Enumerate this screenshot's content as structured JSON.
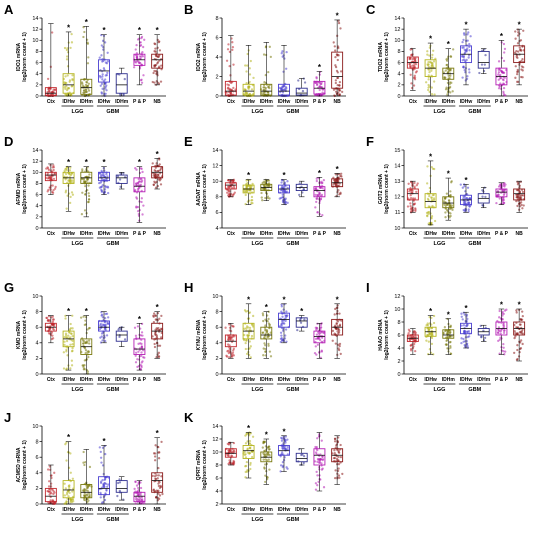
{
  "group_labels": [
    "LGG",
    "GBM"
  ],
  "star": "*",
  "chart_data": [
    {
      "panel": "A",
      "type": "box",
      "ylabel": "IDO1 mRNA",
      "ylabel2": "log2(norm count + 1)",
      "ylim": [
        0,
        14
      ],
      "yticks": [
        0,
        2,
        4,
        6,
        8,
        10,
        12,
        14
      ],
      "categories": [
        "Ctx",
        "IDHw",
        "IDHm",
        "IDHw",
        "IDHm",
        "P & P",
        "NB"
      ],
      "significant": [
        false,
        true,
        true,
        true,
        false,
        true,
        true
      ],
      "colors": [
        "#c0272d",
        "#b5b51f",
        "#7a7a0f",
        "#4a3fd1",
        "#2e2e8f",
        "#b51fb5",
        "#8b1a1a"
      ],
      "boxes": [
        {
          "min": 0,
          "q1": 0.1,
          "median": 0.5,
          "q3": 1.5,
          "max": 13
        },
        {
          "min": 0,
          "q1": 0.5,
          "median": 2.0,
          "q3": 4.0,
          "max": 11.5
        },
        {
          "min": 0,
          "q1": 0.3,
          "median": 1.5,
          "q3": 3.0,
          "max": 12.5
        },
        {
          "min": 0,
          "q1": 2.5,
          "median": 4.5,
          "q3": 6.5,
          "max": 11
        },
        {
          "min": 0,
          "q1": 0.5,
          "median": 2.0,
          "q3": 4.0,
          "max": 5
        },
        {
          "min": 2,
          "q1": 5.5,
          "median": 6.5,
          "q3": 7.5,
          "max": 11
        },
        {
          "min": 2,
          "q1": 5.0,
          "median": 6.5,
          "q3": 7.5,
          "max": 11
        }
      ]
    },
    {
      "panel": "B",
      "type": "box",
      "ylabel": "IDO2 mRNA",
      "ylabel2": "log2(norm count + 1)",
      "ylim": [
        0,
        8
      ],
      "yticks": [
        0,
        2,
        4,
        6,
        8
      ],
      "categories": [
        "Ctx",
        "IDHw",
        "IDHm",
        "IDHw",
        "IDHm",
        "P & P",
        "NB"
      ],
      "significant": [
        false,
        false,
        false,
        false,
        false,
        true,
        true
      ],
      "colors": [
        "#c0272d",
        "#b5b51f",
        "#7a7a0f",
        "#4a3fd1",
        "#2e2e8f",
        "#b51fb5",
        "#8b1a1a"
      ],
      "boxes": [
        {
          "min": 0,
          "q1": 0.1,
          "median": 0.5,
          "q3": 1.5,
          "max": 6.2
        },
        {
          "min": 0,
          "q1": 0.1,
          "median": 0.5,
          "q3": 1.2,
          "max": 5.2
        },
        {
          "min": 0,
          "q1": 0.1,
          "median": 0.5,
          "q3": 1.2,
          "max": 5.5
        },
        {
          "min": 0,
          "q1": 0.1,
          "median": 0.5,
          "q3": 1.2,
          "max": 5.2
        },
        {
          "min": 0,
          "q1": 0.1,
          "median": 0.3,
          "q3": 0.8,
          "max": 1.8
        },
        {
          "min": 0,
          "q1": 0.2,
          "median": 0.8,
          "q3": 1.5,
          "max": 2.5
        },
        {
          "min": 0,
          "q1": 0.8,
          "median": 2.0,
          "q3": 4.5,
          "max": 7.8
        }
      ]
    },
    {
      "panel": "C",
      "type": "box",
      "ylabel": "TDO2 mRNA",
      "ylabel2": "log2(norm count + 1)",
      "ylim": [
        0,
        14
      ],
      "yticks": [
        0,
        2,
        4,
        6,
        8,
        10,
        12,
        14
      ],
      "categories": [
        "Ctx",
        "IDHw",
        "IDHm",
        "IDHw",
        "IDHm",
        "P & P",
        "NB"
      ],
      "significant": [
        false,
        true,
        true,
        true,
        false,
        true,
        true
      ],
      "colors": [
        "#c0272d",
        "#b5b51f",
        "#7a7a0f",
        "#4a3fd1",
        "#2e2e8f",
        "#b51fb5",
        "#8b1a1a"
      ],
      "boxes": [
        {
          "min": 1,
          "q1": 5.0,
          "median": 6.0,
          "q3": 7.0,
          "max": 8.5
        },
        {
          "min": 0,
          "q1": 3.5,
          "median": 5.0,
          "q3": 6.5,
          "max": 9.5
        },
        {
          "min": 0,
          "q1": 3.0,
          "median": 4.0,
          "q3": 5.0,
          "max": 8.5
        },
        {
          "min": 2,
          "q1": 6.0,
          "median": 7.5,
          "q3": 9.0,
          "max": 12
        },
        {
          "min": 4,
          "q1": 5.0,
          "median": 6.0,
          "q3": 8.0,
          "max": 8.5
        },
        {
          "min": 0,
          "q1": 2.0,
          "median": 3.5,
          "q3": 5.0,
          "max": 10
        },
        {
          "min": 2,
          "q1": 6.0,
          "median": 7.5,
          "q3": 9.0,
          "max": 12
        }
      ]
    },
    {
      "panel": "D",
      "type": "box",
      "ylabel": "AFMID mRNA",
      "ylabel2": "log2(norm count + 1)",
      "ylim": [
        0,
        14
      ],
      "yticks": [
        0,
        2,
        4,
        6,
        8,
        10,
        12,
        14
      ],
      "categories": [
        "Ctx",
        "IDHw",
        "IDHm",
        "IDHw",
        "IDHm",
        "P & P",
        "NB"
      ],
      "significant": [
        false,
        true,
        true,
        true,
        false,
        true,
        true
      ],
      "colors": [
        "#c0272d",
        "#b5b51f",
        "#7a7a0f",
        "#4a3fd1",
        "#2e2e8f",
        "#b51fb5",
        "#8b1a1a"
      ],
      "boxes": [
        {
          "min": 6,
          "q1": 8.5,
          "median": 9.5,
          "q3": 10.0,
          "max": 11.5
        },
        {
          "min": 3,
          "q1": 8.0,
          "median": 9.0,
          "q3": 10.0,
          "max": 11
        },
        {
          "min": 2,
          "q1": 8.0,
          "median": 9.0,
          "q3": 10.0,
          "max": 11
        },
        {
          "min": 6,
          "q1": 8.5,
          "median": 9.0,
          "q3": 10.0,
          "max": 11
        },
        {
          "min": 7,
          "q1": 8.0,
          "median": 9.0,
          "q3": 9.5,
          "max": 10
        },
        {
          "min": 1,
          "q1": 6.5,
          "median": 7.5,
          "q3": 9.0,
          "max": 11
        },
        {
          "min": 7,
          "q1": 9.0,
          "median": 10.0,
          "q3": 11.0,
          "max": 12.5
        }
      ]
    },
    {
      "panel": "E",
      "type": "box",
      "ylabel": "AADAT mRNA",
      "ylabel2": "log2(norm count + 1)",
      "ylim": [
        4,
        14
      ],
      "yticks": [
        4,
        6,
        8,
        10,
        12,
        14
      ],
      "categories": [
        "Ctx",
        "IDHw",
        "IDHm",
        "IDHw",
        "IDHm",
        "P & P",
        "NB"
      ],
      "significant": [
        false,
        true,
        false,
        true,
        false,
        true,
        true
      ],
      "colors": [
        "#c0272d",
        "#b5b51f",
        "#7a7a0f",
        "#4a3fd1",
        "#2e2e8f",
        "#b51fb5",
        "#8b1a1a"
      ],
      "boxes": [
        {
          "min": 8,
          "q1": 9.0,
          "median": 9.5,
          "q3": 9.8,
          "max": 10.2
        },
        {
          "min": 7,
          "q1": 8.5,
          "median": 9.0,
          "q3": 9.5,
          "max": 10.2
        },
        {
          "min": 7.5,
          "q1": 8.8,
          "median": 9.2,
          "q3": 9.6,
          "max": 10.2
        },
        {
          "min": 7,
          "q1": 8.5,
          "median": 9.0,
          "q3": 9.5,
          "max": 10.2
        },
        {
          "min": 8,
          "q1": 8.8,
          "median": 9.2,
          "q3": 9.6,
          "max": 10
        },
        {
          "min": 5.5,
          "q1": 8.0,
          "median": 8.8,
          "q3": 9.3,
          "max": 10.5
        },
        {
          "min": 8,
          "q1": 9.3,
          "median": 9.8,
          "q3": 10.3,
          "max": 11
        }
      ]
    },
    {
      "panel": "F",
      "type": "box",
      "ylabel": "GOT2 mRNA",
      "ylabel2": "log2(norm count + 1)",
      "ylim": [
        10,
        15
      ],
      "yticks": [
        10,
        11,
        12,
        13,
        14,
        15
      ],
      "categories": [
        "Ctx",
        "IDHw",
        "IDHm",
        "IDHw",
        "IDHm",
        "P & P",
        "NB"
      ],
      "significant": [
        false,
        true,
        true,
        true,
        false,
        false,
        false
      ],
      "colors": [
        "#c0272d",
        "#b5b51f",
        "#7a7a0f",
        "#4a3fd1",
        "#2e2e8f",
        "#b51fb5",
        "#8b1a1a"
      ],
      "boxes": [
        {
          "min": 11,
          "q1": 11.8,
          "median": 12.2,
          "q3": 12.5,
          "max": 13
        },
        {
          "min": 10.2,
          "q1": 11.3,
          "median": 11.7,
          "q3": 12.2,
          "max": 14.3
        },
        {
          "min": 10.5,
          "q1": 11.3,
          "median": 11.6,
          "q3": 12.0,
          "max": 13.2
        },
        {
          "min": 11,
          "q1": 11.5,
          "median": 11.8,
          "q3": 12.1,
          "max": 12.8
        },
        {
          "min": 11.3,
          "q1": 11.6,
          "median": 11.9,
          "q3": 12.2,
          "max": 12.6
        },
        {
          "min": 11.5,
          "q1": 12.0,
          "median": 12.3,
          "q3": 12.5,
          "max": 12.9
        },
        {
          "min": 11,
          "q1": 11.8,
          "median": 12.2,
          "q3": 12.5,
          "max": 13
        }
      ]
    },
    {
      "panel": "G",
      "type": "box",
      "ylabel": "KMO mRNA",
      "ylabel2": "log2(norm count + 1)",
      "ylim": [
        0,
        10
      ],
      "yticks": [
        0,
        2,
        4,
        6,
        8,
        10
      ],
      "categories": [
        "Ctx",
        "IDHw",
        "IDHm",
        "IDHw",
        "IDHm",
        "P & P",
        "NB"
      ],
      "significant": [
        false,
        true,
        true,
        false,
        false,
        true,
        true
      ],
      "colors": [
        "#c0272d",
        "#b5b51f",
        "#7a7a0f",
        "#4a3fd1",
        "#2e2e8f",
        "#b51fb5",
        "#8b1a1a"
      ],
      "boxes": [
        {
          "min": 4,
          "q1": 5.5,
          "median": 6.0,
          "q3": 6.5,
          "max": 7.5
        },
        {
          "min": 0.5,
          "q1": 3.5,
          "median": 4.5,
          "q3": 5.5,
          "max": 7.5
        },
        {
          "min": 0,
          "q1": 2.5,
          "median": 3.5,
          "q3": 4.5,
          "max": 7.5
        },
        {
          "min": 4,
          "q1": 5.5,
          "median": 6.0,
          "q3": 6.8,
          "max": 8
        },
        {
          "min": 3.5,
          "q1": 4.2,
          "median": 5.0,
          "q3": 5.5,
          "max": 6
        },
        {
          "min": 0.5,
          "q1": 2.5,
          "median": 3.2,
          "q3": 4.5,
          "max": 6.5
        },
        {
          "min": 2,
          "q1": 4.5,
          "median": 5.5,
          "q3": 6.5,
          "max": 8
        }
      ]
    },
    {
      "panel": "H",
      "type": "box",
      "ylabel": "KYNU mRNA",
      "ylabel2": "log2(norm count + 1)",
      "ylim": [
        0,
        10
      ],
      "yticks": [
        0,
        2,
        4,
        6,
        8,
        10
      ],
      "categories": [
        "Ctx",
        "IDHw",
        "IDHm",
        "IDHw",
        "IDHm",
        "P & P",
        "NB"
      ],
      "significant": [
        false,
        true,
        true,
        true,
        true,
        false,
        true
      ],
      "colors": [
        "#c0272d",
        "#b5b51f",
        "#7a7a0f",
        "#4a3fd1",
        "#2e2e8f",
        "#b51fb5",
        "#8b1a1a"
      ],
      "boxes": [
        {
          "min": 2,
          "q1": 3.5,
          "median": 4.2,
          "q3": 5.0,
          "max": 6.5
        },
        {
          "min": 2,
          "q1": 4.5,
          "median": 5.5,
          "q3": 6.5,
          "max": 9
        },
        {
          "min": 2,
          "q1": 4.5,
          "median": 5.0,
          "q3": 6.0,
          "max": 8
        },
        {
          "min": 4,
          "q1": 6.0,
          "median": 7.0,
          "q3": 7.8,
          "max": 9
        },
        {
          "min": 5.5,
          "q1": 6.0,
          "median": 6.8,
          "q3": 7.2,
          "max": 7.5
        },
        {
          "min": 2,
          "q1": 4.0,
          "median": 4.8,
          "q3": 5.5,
          "max": 6.5
        },
        {
          "min": 2,
          "q1": 5.0,
          "median": 6.0,
          "q3": 7.0,
          "max": 9
        }
      ]
    },
    {
      "panel": "I",
      "type": "box",
      "ylabel": "HAAO mRNA",
      "ylabel2": "log2(norm count + 1)",
      "ylim": [
        0,
        12
      ],
      "yticks": [
        0,
        2,
        4,
        6,
        8,
        10,
        12
      ],
      "categories": [
        "Ctx",
        "IDHw",
        "IDHm",
        "IDHw",
        "IDHm",
        "P & P",
        "NB"
      ],
      "significant": [
        false,
        true,
        true,
        true,
        false,
        true,
        true
      ],
      "colors": [
        "#c0272d",
        "#b5b51f",
        "#7a7a0f",
        "#4a3fd1",
        "#2e2e8f",
        "#b51fb5",
        "#8b1a1a"
      ],
      "boxes": [
        {
          "min": 3,
          "q1": 5.0,
          "median": 5.5,
          "q3": 6.0,
          "max": 7
        },
        {
          "min": 3,
          "q1": 5.8,
          "median": 6.5,
          "q3": 7.2,
          "max": 9
        },
        {
          "min": 3,
          "q1": 5.5,
          "median": 6.0,
          "q3": 6.8,
          "max": 8.5
        },
        {
          "min": 4,
          "q1": 6.2,
          "median": 7.0,
          "q3": 7.8,
          "max": 9.5
        },
        {
          "min": 5,
          "q1": 6.0,
          "median": 6.5,
          "q3": 7.0,
          "max": 7.5
        },
        {
          "min": 3,
          "q1": 6.0,
          "median": 7.0,
          "q3": 8.0,
          "max": 10
        },
        {
          "min": 2,
          "q1": 6.0,
          "median": 7.0,
          "q3": 8.0,
          "max": 10
        }
      ]
    },
    {
      "panel": "J",
      "type": "box",
      "ylabel": "ACMSD mRNA",
      "ylabel2": "log2(norm count + 1)",
      "ylim": [
        0,
        10
      ],
      "yticks": [
        0,
        2,
        4,
        6,
        8,
        10
      ],
      "categories": [
        "Ctx",
        "IDHw",
        "IDHm",
        "IDHw",
        "IDHm",
        "P & P",
        "NB"
      ],
      "significant": [
        false,
        true,
        false,
        true,
        false,
        false,
        true
      ],
      "colors": [
        "#c0272d",
        "#b5b51f",
        "#7a7a0f",
        "#4a3fd1",
        "#2e2e8f",
        "#b51fb5",
        "#8b1a1a"
      ],
      "boxes": [
        {
          "min": 0,
          "q1": 0.3,
          "median": 1.0,
          "q3": 2.0,
          "max": 5
        },
        {
          "min": 0,
          "q1": 0.8,
          "median": 1.8,
          "q3": 3.0,
          "max": 8
        },
        {
          "min": 0,
          "q1": 0.8,
          "median": 1.5,
          "q3": 2.5,
          "max": 7
        },
        {
          "min": 0,
          "q1": 1.2,
          "median": 2.0,
          "q3": 3.5,
          "max": 7.5
        },
        {
          "min": 0.5,
          "q1": 1.5,
          "median": 2.0,
          "q3": 3.0,
          "max": 3.5
        },
        {
          "min": 0,
          "q1": 0.3,
          "median": 1.0,
          "q3": 1.5,
          "max": 3
        },
        {
          "min": 0,
          "q1": 1.5,
          "median": 3.0,
          "q3": 4.0,
          "max": 8.5
        }
      ]
    },
    {
      "panel": "K",
      "type": "box",
      "ylabel": "QPRT mRNA",
      "ylabel2": "log2(norm count + 1)",
      "ylim": [
        2,
        14
      ],
      "yticks": [
        2,
        4,
        6,
        8,
        10,
        12,
        14
      ],
      "categories": [
        "Ctx",
        "IDHw",
        "IDHm",
        "IDHw",
        "IDHm",
        "P & P",
        "NB"
      ],
      "significant": [
        false,
        true,
        true,
        true,
        false,
        false,
        false
      ],
      "colors": [
        "#c0272d",
        "#b5b51f",
        "#7a7a0f",
        "#4a3fd1",
        "#2e2e8f",
        "#b51fb5",
        "#8b1a1a"
      ],
      "boxes": [
        {
          "min": 8,
          "q1": 9.2,
          "median": 9.8,
          "q3": 10.5,
          "max": 11.5
        },
        {
          "min": 6,
          "q1": 9.0,
          "median": 10.2,
          "q3": 11.0,
          "max": 13
        },
        {
          "min": 5,
          "q1": 8.5,
          "median": 9.2,
          "q3": 10.0,
          "max": 12
        },
        {
          "min": 7,
          "q1": 9.5,
          "median": 10.2,
          "q3": 11.0,
          "max": 12.5
        },
        {
          "min": 8,
          "q1": 8.5,
          "median": 9.0,
          "q3": 9.8,
          "max": 10.5
        },
        {
          "min": 4,
          "q1": 8.0,
          "median": 9.5,
          "q3": 10.5,
          "max": 13
        },
        {
          "min": 5,
          "q1": 8.5,
          "median": 9.5,
          "q3": 10.5,
          "max": 12.5
        }
      ]
    }
  ]
}
